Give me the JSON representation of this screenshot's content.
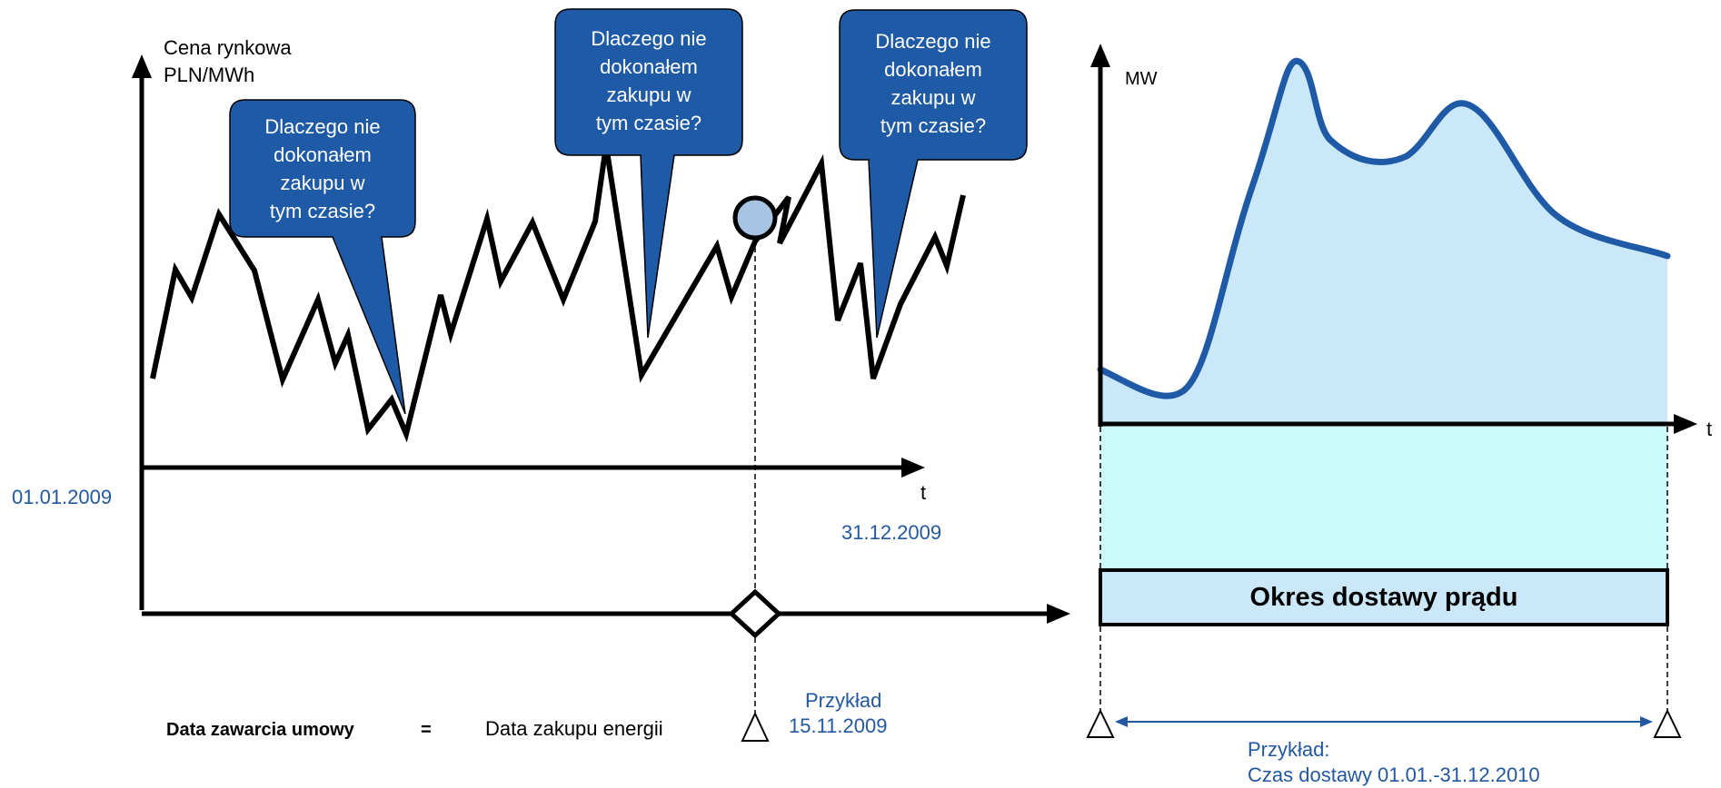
{
  "left_chart": {
    "ylabel_line1": "Cena rynkowa",
    "ylabel_line2": "PLN/MWh",
    "xlabel": "t",
    "start_date": "01.01.2009",
    "end_date": "31.12.2009"
  },
  "bubbles": [
    {
      "line1": "Dlaczego nie",
      "line2": "dokonałem",
      "line3": "zakupu w",
      "line4": "tym czasie?"
    },
    {
      "line1": "Dlaczego nie",
      "line2": "dokonałem",
      "line3": "zakupu w",
      "line4": "tym czasie?"
    },
    {
      "line1": "Dlaczego nie",
      "line2": "dokonałem",
      "line3": "zakupu w",
      "line4": "tym czasie?"
    }
  ],
  "right_chart": {
    "ylabel": "MW",
    "xlabel": "t",
    "delivery_label": "Okres dostawy prądu",
    "example_label": "Przykład:",
    "example_value": "Czas dostawy 01.01.-31.12.2010"
  },
  "bottom": {
    "contract_label": "Data zawarcia umowy",
    "equals": "=",
    "purchase_label": "Data zakupu energii",
    "example_label": "Przykład",
    "example_date": "15.11.2009"
  },
  "colors": {
    "bubble": "#1f5aa6",
    "blue_text": "#2358a0",
    "load_line": "#1f5aa6",
    "load_fill": "#cbe8fb",
    "delivery_fill": "#ccfbfb",
    "delivery_box": "#cbe8fb",
    "marker": "#a8c4e4"
  }
}
